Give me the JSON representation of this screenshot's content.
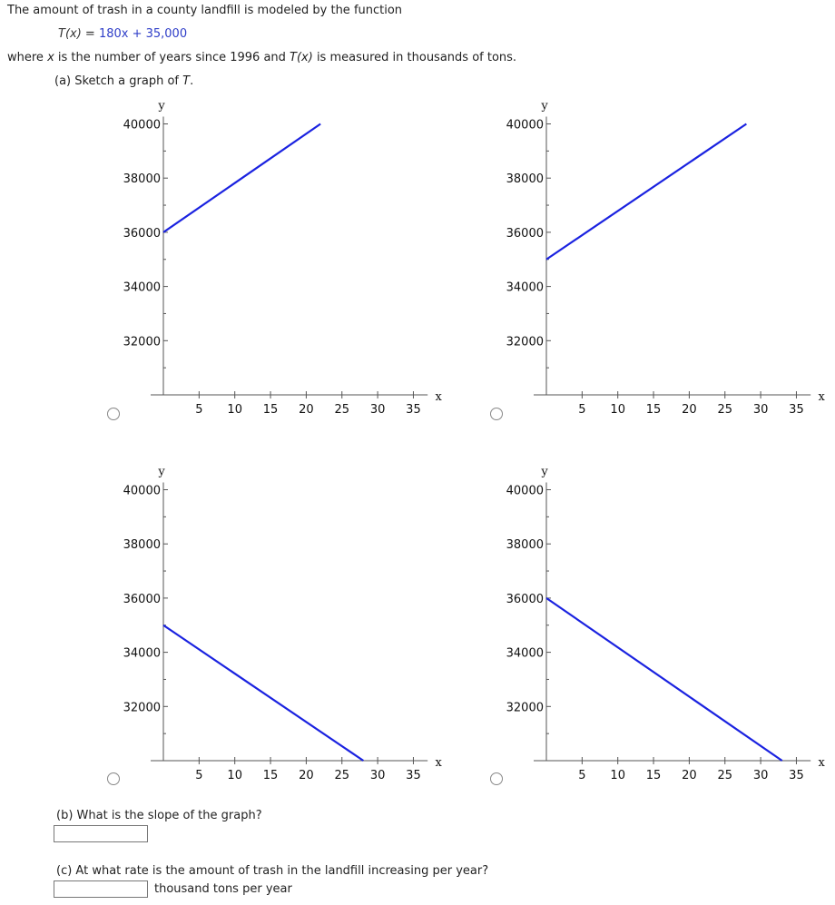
{
  "intro": {
    "line1": "The amount of trash in a county landfill is modeled by the function",
    "func_lhs": "T(x) = ",
    "func_rhs": "180x + 35,000",
    "where_prefix": "where ",
    "where_x": "x",
    "where_mid": " is the number of years since 1996 and ",
    "where_tx": "T(x)",
    "where_suffix": " is measured in thousands of tons."
  },
  "part_a": {
    "label": "(a) Sketch a graph of ",
    "label_var": "T",
    "label_end": "."
  },
  "part_b": {
    "label": "(b) What is the slope of the graph?",
    "answer": ""
  },
  "part_c": {
    "label": "(c) At what rate is the amount of trash in the landfill increasing per year?",
    "answer": "",
    "unit": "thousand tons per year"
  },
  "axes": {
    "y_label": "y",
    "x_label": "x",
    "y_ticks": [
      "40000",
      "38000",
      "36000",
      "34000",
      "32000"
    ],
    "x_ticks": [
      "5",
      "10",
      "15",
      "20",
      "25",
      "30",
      "35"
    ]
  },
  "colors": {
    "line": "#1a22e0",
    "axis": "#555555",
    "formula": "#2f3ec8"
  },
  "chart_data": [
    {
      "type": "line",
      "option": "top-left",
      "x": [
        0,
        22
      ],
      "y": [
        36000,
        40000
      ],
      "xlim": [
        0,
        37
      ],
      "ylim": [
        30000,
        40000
      ]
    },
    {
      "type": "line",
      "option": "top-right",
      "x": [
        0,
        28
      ],
      "y": [
        35000,
        40000
      ],
      "xlim": [
        0,
        37
      ],
      "ylim": [
        30000,
        40000
      ]
    },
    {
      "type": "line",
      "option": "bottom-left",
      "x": [
        0,
        28
      ],
      "y": [
        35000,
        30000
      ],
      "xlim": [
        0,
        37
      ],
      "ylim": [
        30000,
        40000
      ]
    },
    {
      "type": "line",
      "option": "bottom-right",
      "x": [
        0,
        33
      ],
      "y": [
        36000,
        30000
      ],
      "xlim": [
        0,
        37
      ],
      "ylim": [
        30000,
        40000
      ]
    }
  ]
}
